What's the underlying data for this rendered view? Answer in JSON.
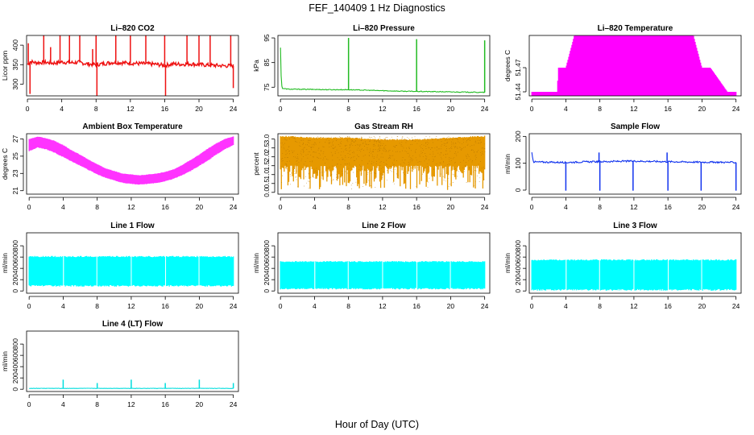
{
  "figure": {
    "title": "FEF_140409  1 Hz Diagnostics",
    "xlabel": "Hour of Day (UTC)"
  },
  "chart_data": [
    {
      "id": "co2",
      "type": "line",
      "title": "Li–820 CO2",
      "ylabel": "Licor ppm",
      "color": "#ee1111",
      "x_ticks": [
        0,
        4,
        8,
        12,
        16,
        20,
        24
      ],
      "y_ticks": [
        300,
        350,
        400
      ],
      "xlim": [
        -0.1,
        24.6
      ],
      "ylim": [
        270,
        425
      ],
      "series": [
        {
          "x": [
            0,
            0.3,
            1,
            2,
            3,
            4,
            5,
            6,
            7,
            8,
            9,
            10,
            11,
            12,
            13,
            14,
            15,
            16,
            17,
            18,
            19,
            20,
            21,
            22,
            23,
            24
          ],
          "y": [
            350,
            358,
            355,
            356,
            354,
            357,
            355,
            356,
            352,
            350,
            353,
            356,
            355,
            354,
            353,
            352,
            351,
            348,
            352,
            351,
            352,
            350,
            349,
            348,
            347,
            347
          ]
        }
      ],
      "spikes": [
        {
          "x": 0.1,
          "y": 405
        },
        {
          "x": 0.3,
          "y": 275
        },
        {
          "x": 1.9,
          "y": 440
        },
        {
          "x": 2.7,
          "y": 395
        },
        {
          "x": 3.8,
          "y": 440
        },
        {
          "x": 4.9,
          "y": 440
        },
        {
          "x": 6.1,
          "y": 440
        },
        {
          "x": 7.6,
          "y": 390
        },
        {
          "x": 8.0,
          "y": 440
        },
        {
          "x": 8.1,
          "y": 270
        },
        {
          "x": 10.3,
          "y": 440
        },
        {
          "x": 12.0,
          "y": 440
        },
        {
          "x": 13.8,
          "y": 440
        },
        {
          "x": 16.0,
          "y": 440
        },
        {
          "x": 16.1,
          "y": 270
        },
        {
          "x": 18.6,
          "y": 440
        },
        {
          "x": 20.0,
          "y": 440
        },
        {
          "x": 21.3,
          "y": 440
        },
        {
          "x": 23.7,
          "y": 440
        },
        {
          "x": 24.0,
          "y": 290
        }
      ]
    },
    {
      "id": "pressure",
      "type": "line",
      "title": "Li–820 Pressure",
      "ylabel": "kPa",
      "color": "#22bb22",
      "x_ticks": [
        0,
        4,
        8,
        12,
        16,
        20,
        24
      ],
      "y_ticks": [
        75,
        85,
        95
      ],
      "xlim": [
        -0.3,
        24.6
      ],
      "ylim": [
        71.5,
        96
      ],
      "series": [
        {
          "x": [
            0,
            0.1,
            0.2,
            1,
            2,
            4,
            6,
            8,
            10,
            12,
            14,
            16,
            18,
            20,
            22,
            24
          ],
          "y": [
            91,
            77,
            74.5,
            74.2,
            74.2,
            74.1,
            74,
            74,
            73.8,
            73.6,
            73.4,
            73.3,
            73.2,
            73.1,
            73,
            72.9
          ]
        }
      ],
      "spikes": [
        {
          "x": 8.0,
          "y": 95
        },
        {
          "x": 16.0,
          "y": 94.5
        },
        {
          "x": 24.0,
          "y": 94
        }
      ]
    },
    {
      "id": "licor_temp",
      "type": "area",
      "title": "Li–820 Temperature",
      "ylabel": "degrees C",
      "color": "#ff00ff",
      "x_ticks": [
        0,
        4,
        8,
        12,
        16,
        20,
        24
      ],
      "y_ticks": [
        51.44,
        51.47
      ],
      "y_tick_labels": [
        "51.44",
        "51.47"
      ],
      "xlim": [
        -0.3,
        24.6
      ],
      "ylim": [
        51.435,
        51.51
      ],
      "series": [
        {
          "x": [
            0,
            3,
            3.1,
            4,
            5,
            12,
            19,
            20,
            21,
            23,
            24
          ],
          "y": [
            51.44,
            51.44,
            51.47,
            51.47,
            51.51,
            51.51,
            51.51,
            51.47,
            51.47,
            51.44,
            51.44
          ]
        }
      ]
    },
    {
      "id": "box_temp",
      "type": "area",
      "title": "Ambient Box Temperature",
      "ylabel": "degrees C",
      "color": "#ff33ff",
      "x_ticks": [
        0,
        4,
        8,
        12,
        16,
        20,
        24
      ],
      "y_ticks": [
        21,
        23,
        25,
        27
      ],
      "xlim": [
        -0.3,
        24.6
      ],
      "ylim": [
        20.6,
        27.6
      ],
      "band": {
        "x": [
          0,
          1,
          2,
          3,
          4,
          5,
          6,
          7,
          8,
          9,
          10,
          11,
          12,
          13,
          14,
          15,
          16,
          17,
          18,
          19,
          20,
          21,
          22,
          23,
          24
        ],
        "lo": [
          25.6,
          26,
          25.8,
          25.4,
          24.9,
          24.4,
          23.9,
          23.4,
          22.9,
          22.5,
          22.2,
          21.9,
          21.8,
          21.7,
          21.8,
          21.9,
          22.1,
          22.4,
          22.8,
          23.3,
          23.9,
          24.5,
          25.2,
          25.8,
          26.3
        ],
        "hi": [
          27,
          27.3,
          27.1,
          26.8,
          26.3,
          25.7,
          25.2,
          24.6,
          24.1,
          23.6,
          23.3,
          23,
          22.9,
          22.8,
          22.9,
          23,
          23.2,
          23.5,
          24,
          24.6,
          25.2,
          25.9,
          26.5,
          27,
          27.3
        ]
      }
    },
    {
      "id": "rh",
      "type": "area",
      "title": "Gas Stream RH",
      "ylabel": "percent",
      "color": "#e69900",
      "x_ticks": [
        0,
        4,
        8,
        12,
        16,
        20,
        24
      ],
      "y_ticks": [
        0.0,
        0.5,
        1.0,
        1.5,
        2.0,
        2.5,
        3.0
      ],
      "y_tick_labels": [
        "0.0",
        "0.5",
        "1.0",
        "1.5",
        "2.0",
        "2.5",
        "3.0"
      ],
      "xlim": [
        -0.3,
        24.6
      ],
      "ylim": [
        -0.1,
        3.3
      ],
      "band": {
        "x": [
          0,
          4,
          8,
          12,
          16,
          20,
          24
        ],
        "lo": [
          1.5,
          1.5,
          1.5,
          1.5,
          1.5,
          1.5,
          1.5
        ],
        "hi": [
          3.2,
          3.1,
          3.1,
          3.0,
          3.0,
          3.1,
          3.2
        ]
      }
    },
    {
      "id": "sample_flow",
      "type": "line",
      "title": "Sample Flow",
      "ylabel": "ml/min",
      "color": "#1133ee",
      "x_ticks": [
        0,
        4,
        8,
        12,
        16,
        20,
        24
      ],
      "y_ticks": [
        0,
        100,
        200
      ],
      "xlim": [
        -0.3,
        24.6
      ],
      "ylim": [
        -15,
        210
      ],
      "series": [
        {
          "x": [
            0,
            0.2,
            2,
            4,
            6,
            8,
            10,
            12,
            14,
            16,
            18,
            20,
            22,
            24
          ],
          "y": [
            140,
            105,
            104,
            103,
            105,
            106,
            107,
            108,
            107,
            106,
            105,
            104,
            104,
            103
          ]
        }
      ],
      "spikes": [
        {
          "x": 0,
          "y": 140
        },
        {
          "x": 4.0,
          "y": -2
        },
        {
          "x": 7.9,
          "y": 140
        },
        {
          "x": 8.0,
          "y": -2
        },
        {
          "x": 11.9,
          "y": -2
        },
        {
          "x": 15.9,
          "y": 140
        },
        {
          "x": 16.0,
          "y": -2
        },
        {
          "x": 19.9,
          "y": -2
        },
        {
          "x": 24.0,
          "y": -2
        }
      ]
    },
    {
      "id": "line1_flow",
      "type": "area",
      "title": "Line 1 Flow",
      "ylabel": "ml/min",
      "color": "#00ffff",
      "x_ticks": [
        0,
        4,
        8,
        12,
        16,
        20,
        24
      ],
      "y_ticks": [
        0,
        200,
        400,
        600,
        800
      ],
      "xlim": [
        -0.3,
        24.6
      ],
      "ylim": [
        -40,
        1030
      ],
      "band": {
        "x": [
          0,
          24
        ],
        "lo": [
          90,
          90
        ],
        "hi": [
          620,
          620
        ]
      },
      "gaps": [
        4,
        8,
        12,
        16,
        20
      ]
    },
    {
      "id": "line2_flow",
      "type": "area",
      "title": "Line 2 Flow",
      "ylabel": "ml/min",
      "color": "#00ffff",
      "x_ticks": [
        0,
        4,
        8,
        12,
        16,
        20,
        24
      ],
      "y_ticks": [
        0,
        200,
        400,
        600,
        800
      ],
      "xlim": [
        -0.3,
        24.6
      ],
      "ylim": [
        -40,
        1030
      ],
      "band": {
        "x": [
          0,
          24
        ],
        "lo": [
          40,
          40
        ],
        "hi": [
          530,
          530
        ]
      },
      "gaps": [
        4,
        8,
        12,
        16,
        20
      ]
    },
    {
      "id": "line3_flow",
      "type": "area",
      "title": "Line 3 Flow",
      "ylabel": "ml/min",
      "color": "#00ffff",
      "x_ticks": [
        0,
        4,
        8,
        12,
        16,
        20,
        24
      ],
      "y_ticks": [
        0,
        200,
        400,
        600,
        800
      ],
      "xlim": [
        -0.3,
        24.6
      ],
      "ylim": [
        -40,
        1030
      ],
      "band": {
        "x": [
          0,
          24
        ],
        "lo": [
          20,
          20
        ],
        "hi": [
          560,
          560
        ]
      },
      "gaps": [
        4,
        8,
        12,
        16,
        20
      ]
    },
    {
      "id": "line4_flow",
      "type": "line",
      "title": "Line 4 (LT) Flow",
      "ylabel": "ml/min",
      "color": "#00dddd",
      "x_ticks": [
        0,
        4,
        8,
        12,
        16,
        20,
        24
      ],
      "y_ticks": [
        0,
        200,
        400,
        600,
        800
      ],
      "xlim": [
        -0.3,
        24.6
      ],
      "ylim": [
        -40,
        1030
      ],
      "series": [
        {
          "x": [
            0,
            24
          ],
          "y": [
            15,
            15
          ]
        }
      ],
      "spikes": [
        {
          "x": 4.0,
          "y": 170
        },
        {
          "x": 8.0,
          "y": 110
        },
        {
          "x": 12.0,
          "y": 170
        },
        {
          "x": 16.0,
          "y": 110
        },
        {
          "x": 20.0,
          "y": 170
        },
        {
          "x": 24.0,
          "y": 110
        }
      ]
    }
  ]
}
